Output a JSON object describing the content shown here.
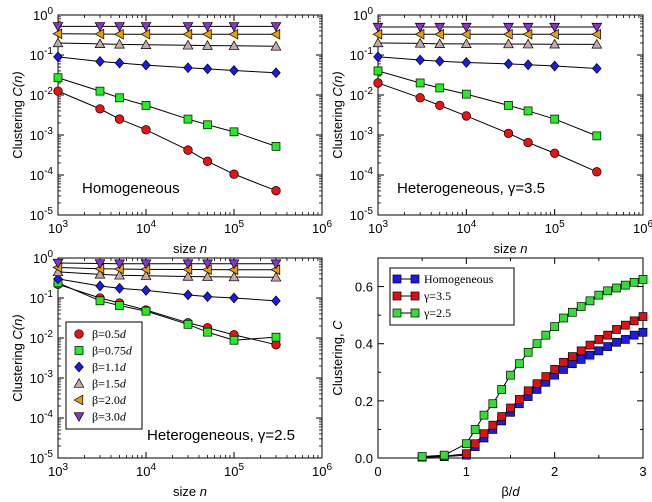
{
  "chart_data": [
    {
      "type": "scatter",
      "panel": "Homogeneous",
      "annotation": "Homogeneous",
      "xlabel": "size n",
      "ylabel": "Clustering C(n)",
      "xscale": "log",
      "yscale": "log",
      "xlim": [
        1000,
        1000000
      ],
      "ylim": [
        1e-05,
        1
      ],
      "grid": false,
      "series": [
        {
          "name": "β=0.5d",
          "marker": "circle",
          "color": "#ee1111",
          "x": [
            1000,
            3000,
            5000,
            10000,
            30000,
            50000,
            100000,
            300000
          ],
          "y": [
            0.0125,
            0.0045,
            0.0025,
            0.00135,
            0.00042,
            0.00022,
            0.000105,
            4.05e-05
          ]
        },
        {
          "name": "β=0.75d",
          "marker": "square",
          "color": "#22ee22",
          "x": [
            1000,
            3000,
            5000,
            10000,
            30000,
            50000,
            100000,
            300000
          ],
          "y": [
            0.027,
            0.0125,
            0.0085,
            0.0055,
            0.0025,
            0.0018,
            0.0012,
            0.00052
          ]
        },
        {
          "name": "β=1.1d",
          "marker": "diamond",
          "color": "#1a1aee",
          "x": [
            1000,
            3000,
            5000,
            10000,
            30000,
            50000,
            100000,
            300000
          ],
          "y": [
            0.09,
            0.069,
            0.063,
            0.056,
            0.048,
            0.045,
            0.041,
            0.036
          ]
        },
        {
          "name": "β=1.5d",
          "marker": "triangle-up",
          "color": "#c8a8a8",
          "x": [
            1000,
            3000,
            5000,
            10000,
            30000,
            50000,
            100000,
            300000
          ],
          "y": [
            0.2,
            0.19,
            0.185,
            0.18,
            0.175,
            0.172,
            0.17,
            0.165
          ]
        },
        {
          "name": "β=2.0d",
          "marker": "triangle-left",
          "color": "#e8a000",
          "x": [
            1000,
            3000,
            5000,
            10000,
            30000,
            50000,
            100000,
            300000
          ],
          "y": [
            0.34,
            0.335,
            0.33,
            0.33,
            0.33,
            0.33,
            0.33,
            0.33
          ]
        },
        {
          "name": "β=3.0d",
          "marker": "triangle-down",
          "color": "#8833cc",
          "x": [
            1000,
            3000,
            5000,
            10000,
            30000,
            50000,
            100000,
            300000
          ],
          "y": [
            0.52,
            0.52,
            0.52,
            0.52,
            0.52,
            0.52,
            0.52,
            0.52
          ]
        }
      ]
    },
    {
      "type": "scatter",
      "panel": "Heterogeneous 3.5",
      "annotation": "Heterogeneous, γ=3.5",
      "xlabel": "size n",
      "ylabel": "Clustering C(n)",
      "xscale": "log",
      "yscale": "log",
      "xlim": [
        1000,
        1000000
      ],
      "ylim": [
        1e-05,
        1
      ],
      "grid": false,
      "series": [
        {
          "name": "β=0.5d",
          "marker": "circle",
          "color": "#ee1111",
          "x": [
            1000,
            3000,
            5000,
            10000,
            30000,
            50000,
            100000,
            300000
          ],
          "y": [
            0.02,
            0.0085,
            0.0055,
            0.003,
            0.0011,
            0.00065,
            0.00035,
            0.00012
          ]
        },
        {
          "name": "β=0.75d",
          "marker": "square",
          "color": "#22ee22",
          "x": [
            1000,
            3000,
            5000,
            10000,
            30000,
            50000,
            100000,
            300000
          ],
          "y": [
            0.04,
            0.02,
            0.015,
            0.0105,
            0.0055,
            0.004,
            0.0025,
            0.00095
          ]
        },
        {
          "name": "β=1.1d",
          "marker": "diamond",
          "color": "#1a1aee",
          "x": [
            1000,
            3000,
            5000,
            10000,
            30000,
            50000,
            100000,
            300000
          ],
          "y": [
            0.09,
            0.075,
            0.07,
            0.065,
            0.06,
            0.057,
            0.053,
            0.046
          ]
        },
        {
          "name": "β=1.5d",
          "marker": "triangle-up",
          "color": "#c8a8a8",
          "x": [
            1000,
            3000,
            5000,
            10000,
            30000,
            50000,
            100000,
            300000
          ],
          "y": [
            0.2,
            0.195,
            0.19,
            0.19,
            0.188,
            0.187,
            0.186,
            0.185
          ]
        },
        {
          "name": "β=2.0d",
          "marker": "triangle-left",
          "color": "#e8a000",
          "x": [
            1000,
            3000,
            5000,
            10000,
            30000,
            50000,
            100000,
            300000
          ],
          "y": [
            0.33,
            0.33,
            0.33,
            0.33,
            0.33,
            0.33,
            0.33,
            0.33
          ]
        },
        {
          "name": "β=3.0d",
          "marker": "triangle-down",
          "color": "#8833cc",
          "x": [
            1000,
            3000,
            5000,
            10000,
            30000,
            50000,
            100000,
            300000
          ],
          "y": [
            0.5,
            0.5,
            0.5,
            0.5,
            0.5,
            0.5,
            0.5,
            0.5
          ]
        }
      ]
    },
    {
      "type": "scatter",
      "panel": "Heterogeneous 2.5",
      "annotation": "Heterogeneous, γ=2.5",
      "xlabel": "size n",
      "ylabel": "Clustering C(n)",
      "xscale": "log",
      "yscale": "log",
      "xlim": [
        1000,
        1000000
      ],
      "ylim": [
        1e-05,
        1
      ],
      "grid": false,
      "legend": "inside-left",
      "series": [
        {
          "name": "β=0.5d",
          "marker": "circle",
          "color": "#ee1111",
          "x": [
            1000,
            3000,
            5000,
            10000,
            30000,
            50000,
            100000,
            300000
          ],
          "y": [
            0.22,
            0.1,
            0.075,
            0.05,
            0.024,
            0.018,
            0.012,
            0.0068
          ]
        },
        {
          "name": "β=0.75d",
          "marker": "square",
          "color": "#22ee22",
          "x": [
            1000,
            3000,
            5000,
            10000,
            30000,
            50000,
            100000,
            300000
          ],
          "y": [
            0.24,
            0.085,
            0.065,
            0.047,
            0.022,
            0.014,
            0.0088,
            0.0105
          ]
        },
        {
          "name": "β=1.1d",
          "marker": "diamond",
          "color": "#1a1aee",
          "x": [
            1000,
            3000,
            5000,
            10000,
            30000,
            50000,
            100000,
            300000
          ],
          "y": [
            0.3,
            0.2,
            0.175,
            0.155,
            0.12,
            0.108,
            0.1,
            0.085
          ]
        },
        {
          "name": "β=1.5d",
          "marker": "triangle-up",
          "color": "#c8a8a8",
          "x": [
            1000,
            3000,
            5000,
            10000,
            30000,
            50000,
            100000,
            300000
          ],
          "y": [
            0.45,
            0.39,
            0.37,
            0.36,
            0.345,
            0.34,
            0.335,
            0.33
          ]
        },
        {
          "name": "β=2.0d",
          "marker": "triangle-left",
          "color": "#e8a000",
          "x": [
            1000,
            3000,
            5000,
            10000,
            30000,
            50000,
            100000,
            300000
          ],
          "y": [
            0.58,
            0.54,
            0.53,
            0.52,
            0.515,
            0.512,
            0.51,
            0.51
          ]
        },
        {
          "name": "β=3.0d",
          "marker": "triangle-down",
          "color": "#8833cc",
          "x": [
            1000,
            3000,
            5000,
            10000,
            30000,
            50000,
            100000,
            300000
          ],
          "y": [
            0.75,
            0.73,
            0.72,
            0.72,
            0.72,
            0.72,
            0.72,
            0.72
          ]
        }
      ]
    },
    {
      "type": "line",
      "panel": "Clustering vs beta",
      "xlabel": "β/d",
      "ylabel": "Clustering, C",
      "xscale": "linear",
      "yscale": "linear",
      "xlim": [
        0,
        3
      ],
      "ylim": [
        0,
        0.7
      ],
      "xticks": [
        0,
        1,
        2,
        3
      ],
      "yticks": [
        0.0,
        0.2,
        0.4,
        0.6
      ],
      "ytick_labels": [
        "0.0",
        "0.2",
        "0.4",
        "0.6"
      ],
      "grid": false,
      "legend": "top-left",
      "series": [
        {
          "name": "Homogeneous",
          "marker": "square",
          "color": "#1a1aee",
          "x": [
            0.5,
            0.75,
            1.0,
            1.1,
            1.2,
            1.3,
            1.4,
            1.5,
            1.6,
            1.7,
            1.8,
            1.9,
            2.0,
            2.1,
            2.2,
            2.3,
            2.4,
            2.5,
            2.6,
            2.7,
            2.8,
            2.9,
            3.0
          ],
          "y": [
            0.003,
            0.005,
            0.01,
            0.04,
            0.07,
            0.1,
            0.13,
            0.16,
            0.19,
            0.215,
            0.24,
            0.265,
            0.29,
            0.31,
            0.33,
            0.345,
            0.36,
            0.375,
            0.39,
            0.405,
            0.415,
            0.43,
            0.44
          ]
        },
        {
          "name": "γ=3.5",
          "marker": "square",
          "color": "#dd1111",
          "x": [
            0.5,
            0.75,
            1.0,
            1.1,
            1.2,
            1.3,
            1.4,
            1.5,
            1.6,
            1.7,
            1.8,
            1.9,
            2.0,
            2.1,
            2.2,
            2.3,
            2.4,
            2.5,
            2.6,
            2.7,
            2.8,
            2.9,
            3.0
          ],
          "y": [
            0.003,
            0.006,
            0.015,
            0.05,
            0.085,
            0.115,
            0.145,
            0.175,
            0.205,
            0.235,
            0.26,
            0.285,
            0.31,
            0.335,
            0.355,
            0.375,
            0.395,
            0.415,
            0.43,
            0.45,
            0.465,
            0.48,
            0.495
          ]
        },
        {
          "name": "γ=2.5",
          "marker": "square",
          "color": "#33dd33",
          "x": [
            0.5,
            0.75,
            1.0,
            1.1,
            1.2,
            1.3,
            1.4,
            1.5,
            1.6,
            1.7,
            1.8,
            1.9,
            2.0,
            2.1,
            2.2,
            2.3,
            2.4,
            2.5,
            2.6,
            2.7,
            2.8,
            2.9,
            3.0
          ],
          "y": [
            0.005,
            0.01,
            0.05,
            0.1,
            0.15,
            0.19,
            0.24,
            0.29,
            0.33,
            0.37,
            0.4,
            0.43,
            0.46,
            0.49,
            0.51,
            0.53,
            0.55,
            0.57,
            0.585,
            0.595,
            0.605,
            0.615,
            0.625
          ]
        }
      ]
    }
  ]
}
